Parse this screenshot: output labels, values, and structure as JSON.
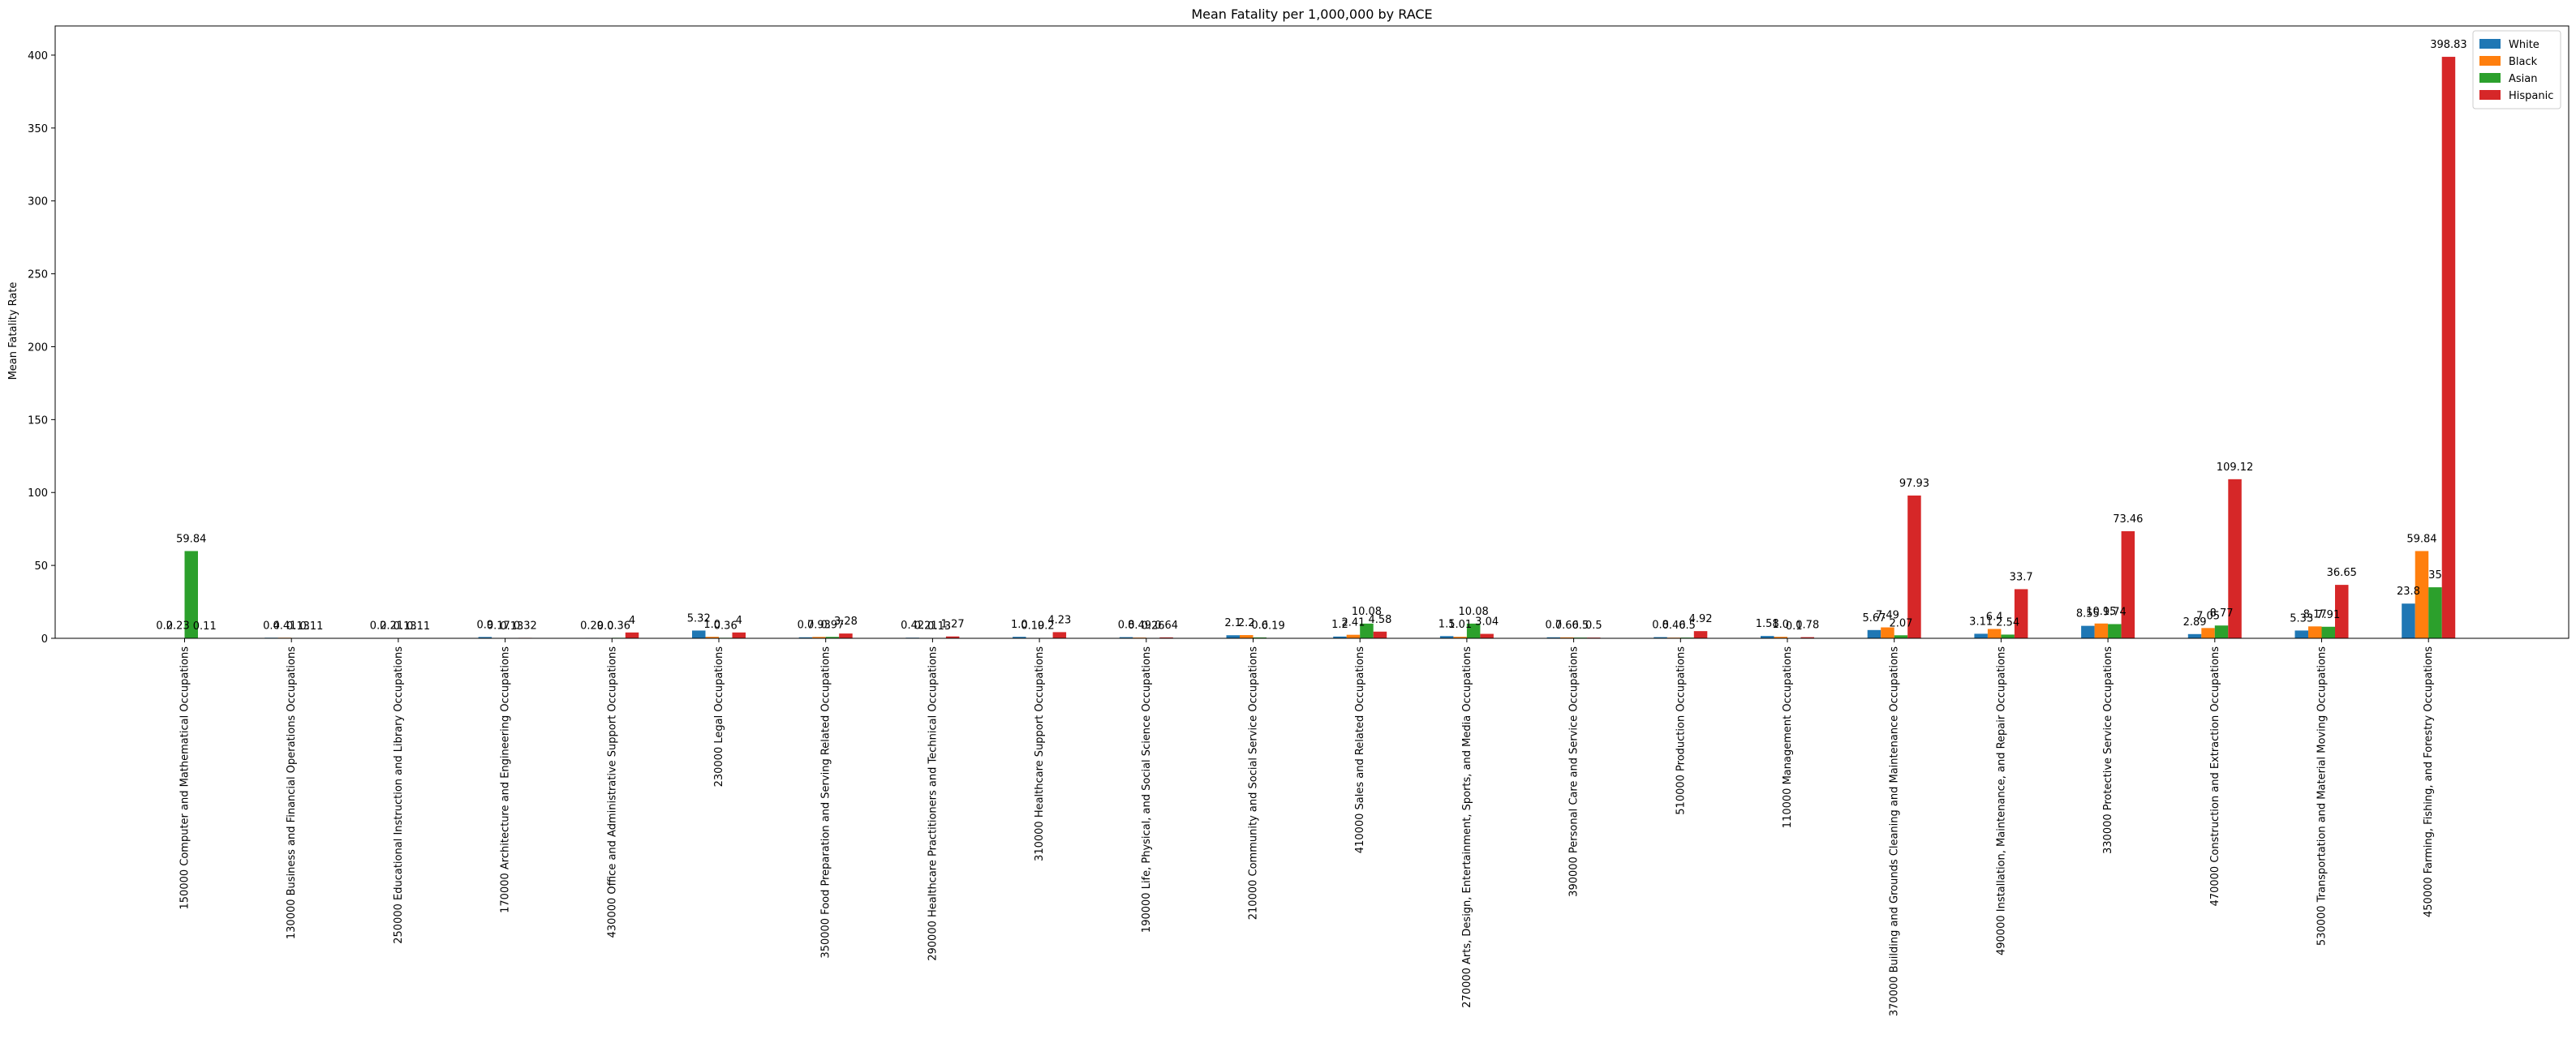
{
  "chart_data": {
    "type": "bar",
    "title": "Mean Fatality per 1,000,000 by RACE",
    "xlabel": "",
    "ylabel": "Mean Fatality Rate",
    "ylim": [
      0,
      420
    ],
    "yticks": [
      0,
      50,
      100,
      150,
      200,
      250,
      300,
      350,
      400
    ],
    "grid": false,
    "legend_position": "top-right",
    "categories": [
      "150000 Computer and Mathematical Occupations",
      "130000 Business and Financial Operations Occupations",
      "250000 Educational Instruction and Library Occupations",
      "170000 Architecture and Engineering Occupations",
      "430000 Office and Administrative Support Occupations",
      "230000 Legal Occupations",
      "350000 Food Preparation and Serving Related Occupations",
      "290000 Healthcare Practitioners and Technical Occupations",
      "310000 Healthcare Support Occupations",
      "190000 Life, Physical, and Social Science Occupations",
      "210000 Community and Social Service Occupations",
      "410000 Sales and Related Occupations",
      "270000 Arts, Design, Entertainment, Sports, and Media Occupations",
      "390000 Personal Care and Service Occupations",
      "510000 Production Occupations",
      "110000 Management Occupations",
      "370000 Building and Grounds Cleaning and Maintenance Occupations",
      "490000 Installation, Maintenance, and Repair Occupations",
      "330000 Protective Service Occupations",
      "470000 Construction and Extraction Occupations",
      "530000 Transportation and Material Moving Occupations",
      "450000 Farming, Fishing, and Forestry Occupations"
    ],
    "series": [
      {
        "name": "White",
        "color": "#1f77b4",
        "values": [
          0.2,
          0.4,
          0.2,
          0.9,
          0.29,
          5.32,
          0.7,
          0.42,
          1.0,
          0.8,
          2.1,
          1.2,
          1.5,
          0.7,
          0.8,
          1.58,
          5.67,
          3.11,
          8.55,
          2.89,
          5.33,
          23.8
        ],
        "labels": [
          "0.2",
          "0.4",
          "0.2",
          "0.9",
          "0.29",
          "5.32",
          "0.7",
          "0.42",
          "1.0",
          "0.8",
          "2.1",
          "1.2",
          "1.5",
          "0.7",
          "0.8",
          "1.58",
          "5.67",
          "3.11",
          "8.55",
          "2.89",
          "5.33",
          "23.8"
        ]
      },
      {
        "name": "Black",
        "color": "#ff7f0e",
        "values": [
          0.23,
          0.41,
          0.21,
          0.17,
          0.0,
          1.0,
          0.93,
          0.21,
          0.19,
          0.49,
          2.2,
          2.41,
          1.01,
          0.66,
          0.46,
          1.0,
          7.49,
          6.4,
          10.15,
          7.05,
          8.17,
          59.84
        ],
        "labels": [
          "0.23",
          "0.41",
          "0.21",
          "0.17",
          "0.0",
          "1.0",
          "0.93",
          "0.21",
          "0.19",
          "0.49",
          "2.2",
          "2.41",
          "1.01",
          "0.66",
          "0.46",
          "1.0",
          "7.49",
          "6.4",
          "10.15",
          "7.05",
          "8.17",
          "59.84"
        ]
      },
      {
        "name": "Asian",
        "color": "#2ca02c",
        "values": [
          59.84,
          0.13,
          0.13,
          0.13,
          0.36,
          0.36,
          0.97,
          0.13,
          0.2,
          0.26,
          0.6,
          10.08,
          10.08,
          0.5,
          0.5,
          0.1,
          2.07,
          2.54,
          9.74,
          8.77,
          7.91,
          35
        ],
        "labels": [
          "59.84",
          "0.13",
          "0.13",
          "0.13",
          "0.36",
          "0.36",
          "0.97",
          "0.13",
          "0.2",
          "0.26",
          "0.6",
          "10.08",
          "10.08",
          "0.5",
          "0.5",
          "0.1",
          "2.07",
          "2.54",
          "9.74",
          "8.77",
          "7.91",
          "35"
        ]
      },
      {
        "name": "Hispanic",
        "color": "#d62728",
        "values": [
          0.11,
          0.11,
          0.11,
          0.32,
          4,
          4,
          3.28,
          1.27,
          4.23,
          0.64,
          0.19,
          4.58,
          3.04,
          0.5,
          4.92,
          0.78,
          97.93,
          33.7,
          73.46,
          109.12,
          36.65,
          398.83
        ],
        "labels": [
          "0.11",
          "0.11",
          "0.11",
          "0.32",
          "4",
          "4",
          "3.28",
          "1.27",
          "4.23",
          "0.64",
          "0.19",
          "4.58",
          "3.04",
          "0.5",
          "4.92",
          "0.78",
          "97.93",
          "33.7",
          "73.46",
          "109.12",
          "36.65",
          "398.83"
        ]
      }
    ]
  }
}
